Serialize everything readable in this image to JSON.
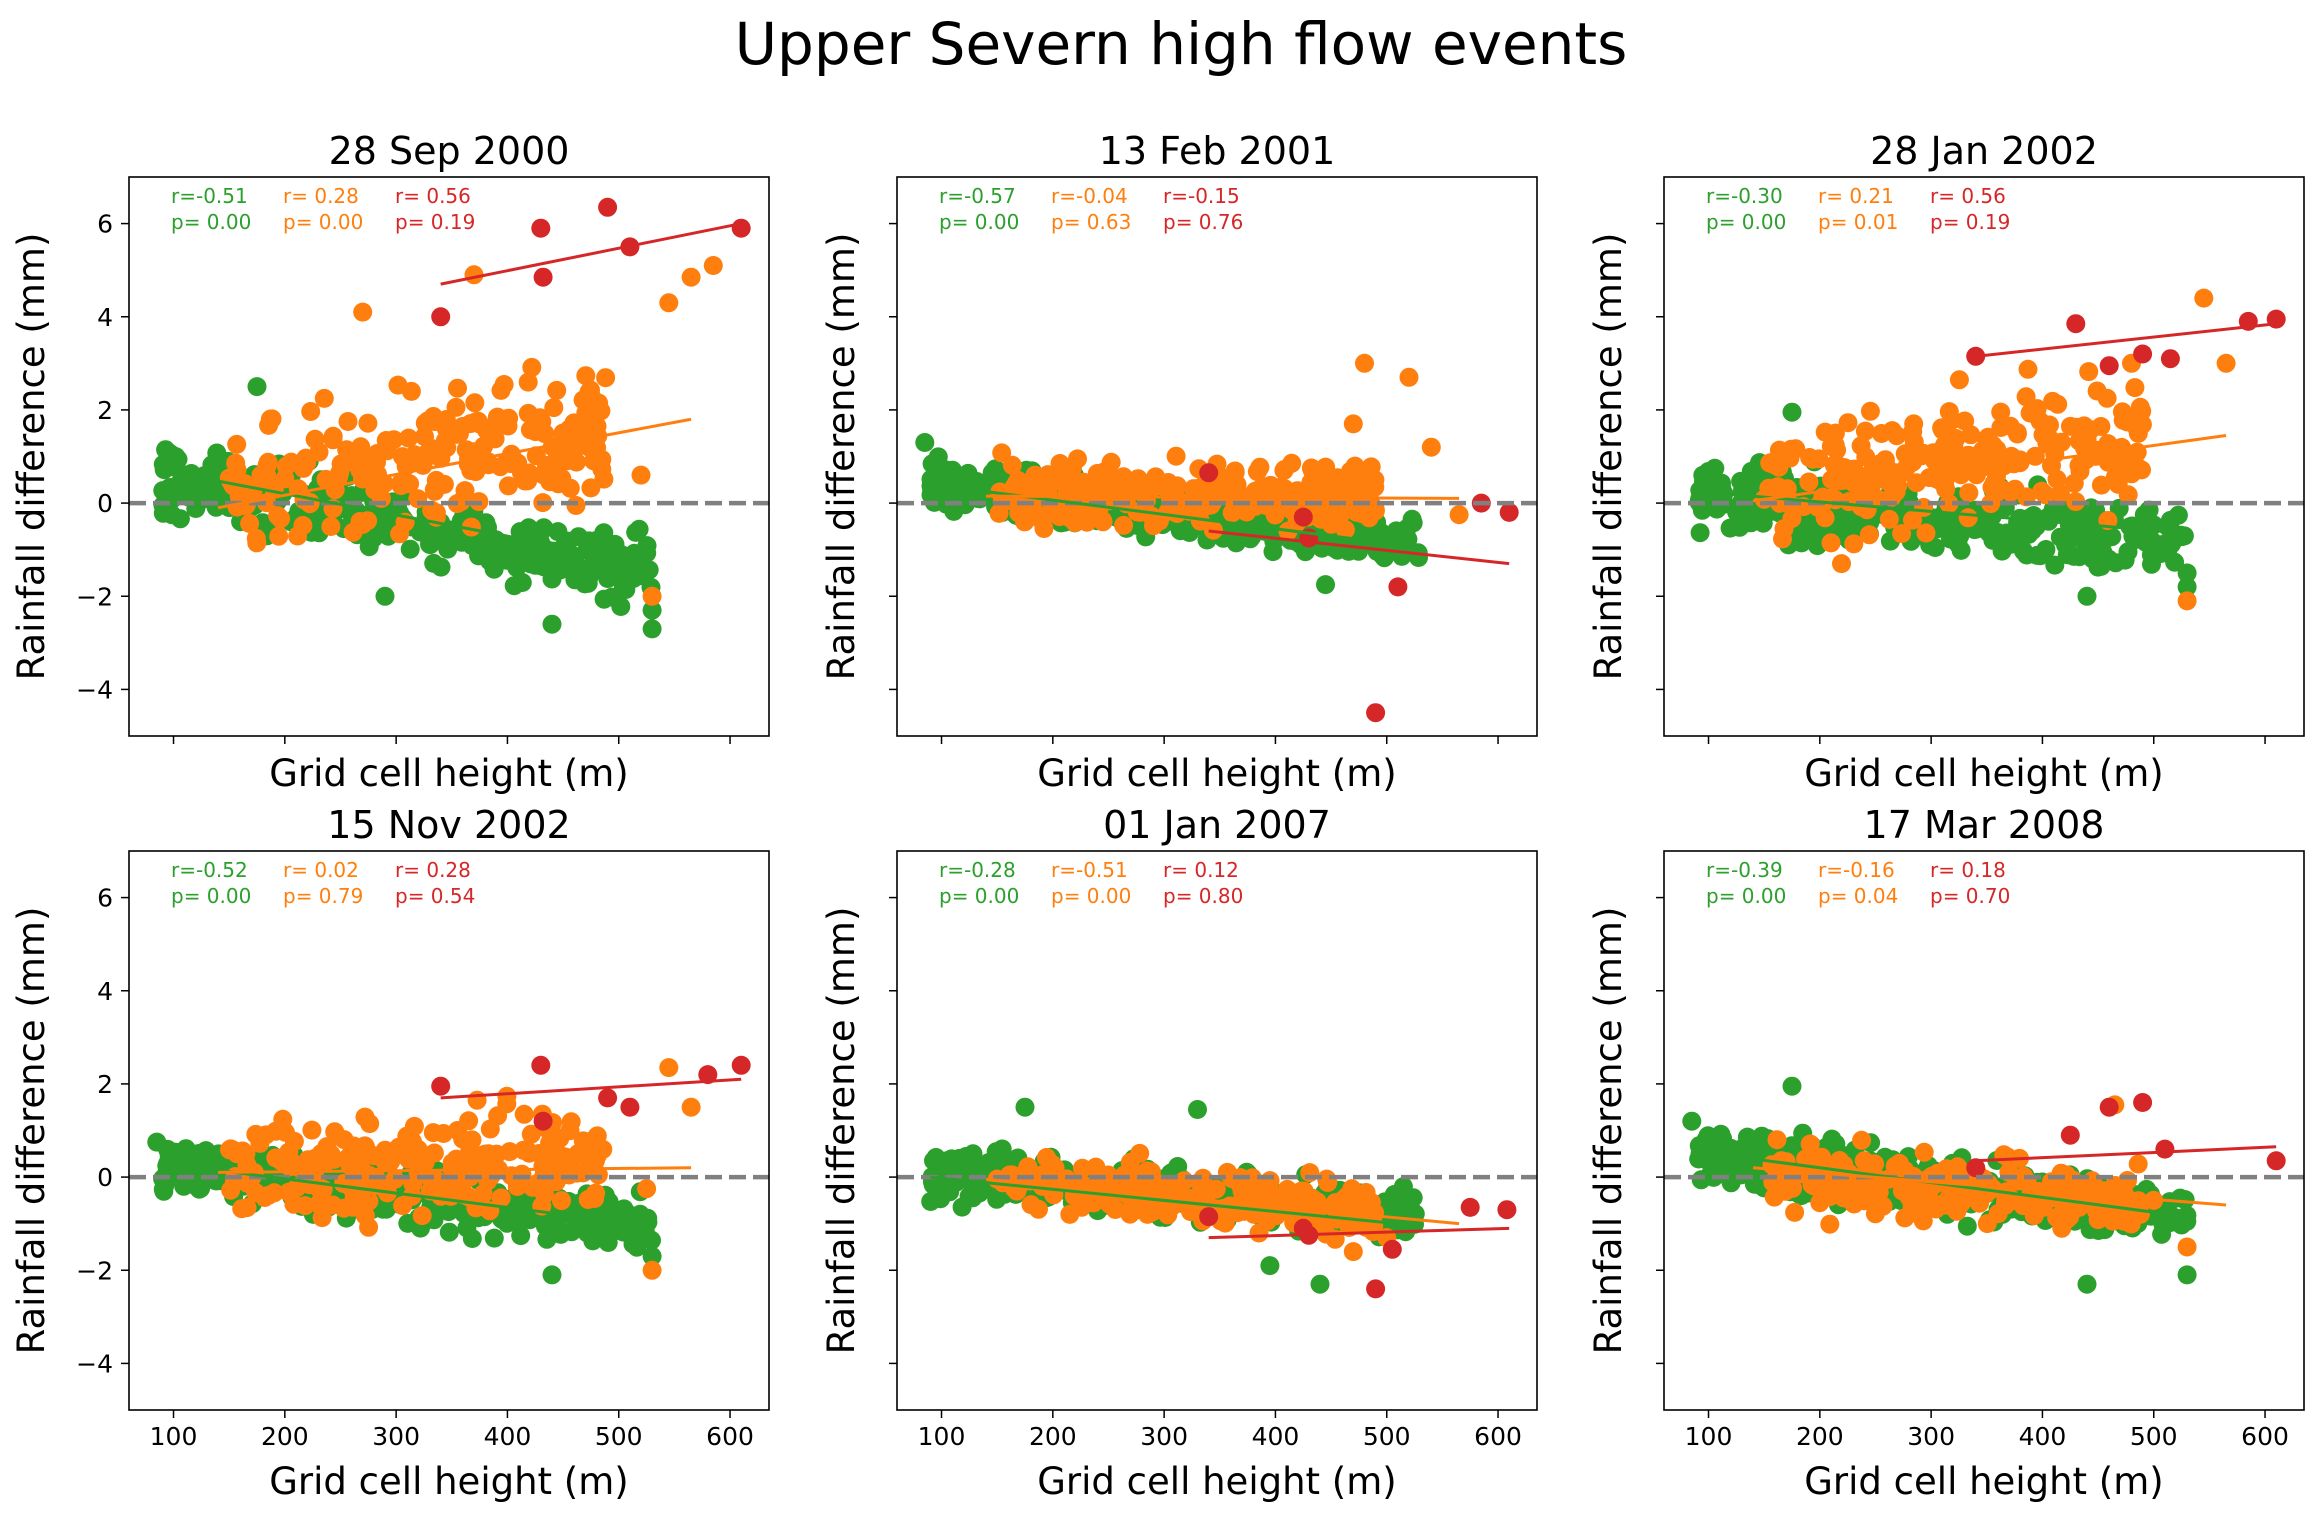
{
  "figure": {
    "title": "Upper Severn high flow events"
  },
  "colors": {
    "green": "#2ca02c",
    "orange": "#ff7f0e",
    "red": "#d62728",
    "zero_line": "#808080"
  },
  "chart_data": [
    {
      "type": "scatter",
      "title": "28 Sep 2000",
      "xlabel": "Grid cell height (m)",
      "ylabel": "Rainfall difference (mm)",
      "xlim": [
        60,
        635
      ],
      "ylim": [
        -5,
        7
      ],
      "xticks": [
        "100",
        "200",
        "300",
        "400",
        "500",
        "600"
      ],
      "yticks": [
        "-4",
        "-2",
        "0",
        "2",
        "4",
        "6"
      ],
      "show_xticklabels": false,
      "show_yticklabels": true,
      "show_xlabel": true,
      "show_ylabel": true,
      "stats": {
        "green": {
          "r": "r=-0.51",
          "p": "p= 0.00"
        },
        "orange": {
          "r": "r= 0.28",
          "p": "p= 0.00"
        },
        "red": {
          "r": "r= 0.56",
          "p": "p= 0.19"
        }
      },
      "fits": {
        "green": {
          "x": [
            90,
            530
          ],
          "y": [
            0.7,
            -1.3
          ]
        },
        "orange": {
          "x": [
            140,
            565
          ],
          "y": [
            -0.1,
            1.8
          ]
        },
        "red": {
          "x": [
            340,
            610
          ],
          "y": [
            4.7,
            6.0
          ]
        }
      },
      "red_points": [
        [
          340,
          4.0
        ],
        [
          430,
          5.9
        ],
        [
          432,
          4.85
        ],
        [
          490,
          6.35
        ],
        [
          510,
          5.5
        ],
        [
          610,
          5.9
        ]
      ],
      "orange_extra": [
        [
          270,
          4.1
        ],
        [
          370,
          4.9
        ],
        [
          545,
          4.3
        ],
        [
          565,
          4.85
        ],
        [
          585,
          5.1
        ],
        [
          530,
          -2.0
        ],
        [
          520,
          0.6
        ]
      ],
      "green_extra": [
        [
          175,
          2.5
        ],
        [
          530,
          -2.7
        ],
        [
          530,
          -2.3
        ],
        [
          440,
          -2.6
        ],
        [
          290,
          -2.0
        ]
      ],
      "green_trend": {
        "a": -0.0045,
        "b": 0.95,
        "spread": 0.65
      },
      "orange_trend": {
        "a": 0.004,
        "b": -0.45,
        "spread": 1.3
      }
    },
    {
      "type": "scatter",
      "title": "13 Feb 2001",
      "xlabel": "Grid cell height (m)",
      "ylabel": "Rainfall difference (mm)",
      "xlim": [
        60,
        635
      ],
      "ylim": [
        -5,
        7
      ],
      "xticks": [
        "100",
        "200",
        "300",
        "400",
        "500",
        "600"
      ],
      "yticks": [
        "-4",
        "-2",
        "0",
        "2",
        "4",
        "6"
      ],
      "show_xticklabels": false,
      "show_yticklabels": false,
      "show_xlabel": true,
      "show_ylabel": true,
      "stats": {
        "green": {
          "r": "r=-0.57",
          "p": "p= 0.00"
        },
        "orange": {
          "r": "r=-0.04",
          "p": "p= 0.63"
        },
        "red": {
          "r": "r=-0.15",
          "p": "p= 0.76"
        }
      },
      "fits": {
        "green": {
          "x": [
            90,
            530
          ],
          "y": [
            0.4,
            -0.95
          ]
        },
        "orange": {
          "x": [
            140,
            565
          ],
          "y": [
            0.15,
            0.1
          ]
        },
        "red": {
          "x": [
            340,
            610
          ],
          "y": [
            -0.6,
            -1.3
          ]
        }
      },
      "red_points": [
        [
          340,
          0.65
        ],
        [
          425,
          -0.3
        ],
        [
          430,
          -0.75
        ],
        [
          490,
          -4.5
        ],
        [
          510,
          -1.8
        ],
        [
          585,
          0.0
        ],
        [
          610,
          -0.2
        ]
      ],
      "orange_extra": [
        [
          480,
          3.0
        ],
        [
          520,
          2.7
        ],
        [
          540,
          1.2
        ],
        [
          565,
          -0.25
        ],
        [
          470,
          1.7
        ]
      ],
      "green_extra": [
        [
          85,
          1.3
        ],
        [
          445,
          -1.75
        ]
      ],
      "green_trend": {
        "a": -0.0028,
        "b": 0.65,
        "spread": 0.45
      },
      "orange_trend": {
        "a": 0.0,
        "b": 0.2,
        "spread": 0.7
      }
    },
    {
      "type": "scatter",
      "title": "28 Jan 2002",
      "xlabel": "Grid cell height (m)",
      "ylabel": "Rainfall difference (mm)",
      "xlim": [
        60,
        635
      ],
      "ylim": [
        -5,
        7
      ],
      "xticks": [
        "100",
        "200",
        "300",
        "400",
        "500",
        "600"
      ],
      "yticks": [
        "-4",
        "-2",
        "0",
        "2",
        "4",
        "6"
      ],
      "show_xticklabels": false,
      "show_yticklabels": false,
      "show_xlabel": true,
      "show_ylabel": true,
      "stats": {
        "green": {
          "r": "r=-0.30",
          "p": "p= 0.00"
        },
        "orange": {
          "r": "r= 0.21",
          "p": "p= 0.01"
        },
        "red": {
          "r": "r= 0.56",
          "p": "p= 0.19"
        }
      },
      "fits": {
        "green": {
          "x": [
            90,
            530
          ],
          "y": [
            0.25,
            -0.65
          ]
        },
        "orange": {
          "x": [
            140,
            565
          ],
          "y": [
            0.05,
            1.45
          ]
        },
        "red": {
          "x": [
            340,
            610
          ],
          "y": [
            3.15,
            3.85
          ]
        }
      },
      "red_points": [
        [
          340,
          3.15
        ],
        [
          430,
          3.85
        ],
        [
          460,
          2.95
        ],
        [
          490,
          3.2
        ],
        [
          515,
          3.1
        ],
        [
          585,
          3.9
        ],
        [
          610,
          3.95
        ]
      ],
      "orange_extra": [
        [
          545,
          4.4
        ],
        [
          565,
          3.0
        ],
        [
          530,
          -2.1
        ],
        [
          480,
          3.0
        ]
      ],
      "green_extra": [
        [
          175,
          1.95
        ],
        [
          530,
          -1.5
        ],
        [
          530,
          -1.8
        ],
        [
          440,
          -2.0
        ]
      ],
      "green_trend": {
        "a": -0.0022,
        "b": 0.35,
        "spread": 0.6
      },
      "orange_trend": {
        "a": 0.0035,
        "b": -0.35,
        "spread": 1.2
      }
    },
    {
      "type": "scatter",
      "title": "15 Nov 2002",
      "xlabel": "Grid cell height (m)",
      "ylabel": "Rainfall difference (mm)",
      "xlim": [
        60,
        635
      ],
      "ylim": [
        -5,
        7
      ],
      "xticks": [
        "100",
        "200",
        "300",
        "400",
        "500",
        "600"
      ],
      "yticks": [
        "-4",
        "-2",
        "0",
        "2",
        "4",
        "6"
      ],
      "show_xticklabels": true,
      "show_yticklabels": true,
      "show_xlabel": true,
      "show_ylabel": true,
      "stats": {
        "green": {
          "r": "r=-0.52",
          "p": "p= 0.00"
        },
        "orange": {
          "r": "r= 0.02",
          "p": "p= 0.79"
        },
        "red": {
          "r": "r= 0.28",
          "p": "p= 0.54"
        }
      },
      "fits": {
        "green": {
          "x": [
            90,
            530
          ],
          "y": [
            0.3,
            -1.05
          ]
        },
        "orange": {
          "x": [
            140,
            565
          ],
          "y": [
            0.1,
            0.2
          ]
        },
        "red": {
          "x": [
            340,
            610
          ],
          "y": [
            1.7,
            2.1
          ]
        }
      },
      "red_points": [
        [
          340,
          1.95
        ],
        [
          430,
          2.4
        ],
        [
          432,
          1.2
        ],
        [
          490,
          1.7
        ],
        [
          510,
          1.5
        ],
        [
          580,
          2.2
        ],
        [
          610,
          2.4
        ]
      ],
      "orange_extra": [
        [
          545,
          2.35
        ],
        [
          565,
          1.5
        ],
        [
          530,
          -2.0
        ],
        [
          525,
          -0.25
        ]
      ],
      "green_extra": [
        [
          85,
          0.75
        ],
        [
          530,
          -1.7
        ],
        [
          440,
          -2.1
        ]
      ],
      "green_trend": {
        "a": -0.003,
        "b": 0.55,
        "spread": 0.55
      },
      "orange_trend": {
        "a": 0.0008,
        "b": 0.0,
        "spread": 0.9
      }
    },
    {
      "type": "scatter",
      "title": "01 Jan 2007",
      "xlabel": "Grid cell height (m)",
      "ylabel": "Rainfall difference (mm)",
      "xlim": [
        60,
        635
      ],
      "ylim": [
        -5,
        7
      ],
      "xticks": [
        "100",
        "200",
        "300",
        "400",
        "500",
        "600"
      ],
      "yticks": [
        "-4",
        "-2",
        "0",
        "2",
        "4",
        "6"
      ],
      "show_xticklabels": true,
      "show_yticklabels": false,
      "show_xlabel": true,
      "show_ylabel": true,
      "stats": {
        "green": {
          "r": "r=-0.28",
          "p": "p= 0.00"
        },
        "orange": {
          "r": "r=-0.51",
          "p": "p= 0.00"
        },
        "red": {
          "r": "r= 0.12",
          "p": "p= 0.80"
        }
      },
      "fits": {
        "green": {
          "x": [
            90,
            530
          ],
          "y": [
            0.0,
            -1.05
          ]
        },
        "orange": {
          "x": [
            140,
            565
          ],
          "y": [
            -0.05,
            -1.0
          ]
        },
        "red": {
          "x": [
            340,
            610
          ],
          "y": [
            -1.3,
            -1.1
          ]
        }
      },
      "red_points": [
        [
          340,
          -0.85
        ],
        [
          425,
          -1.1
        ],
        [
          430,
          -1.25
        ],
        [
          490,
          -2.4
        ],
        [
          505,
          -1.55
        ],
        [
          575,
          -0.65
        ],
        [
          608,
          -0.7
        ]
      ],
      "orange_extra": [
        [
          470,
          -1.6
        ],
        [
          500,
          -1.3
        ]
      ],
      "green_extra": [
        [
          175,
          1.5
        ],
        [
          330,
          1.45
        ],
        [
          395,
          -1.9
        ],
        [
          440,
          -2.3
        ]
      ],
      "green_trend": {
        "a": -0.0018,
        "b": 0.2,
        "spread": 0.5
      },
      "orange_trend": {
        "a": -0.0022,
        "b": 0.3,
        "spread": 0.5
      }
    },
    {
      "type": "scatter",
      "title": "17 Mar 2008",
      "xlabel": "Grid cell height (m)",
      "ylabel": "Rainfall difference (mm)",
      "xlim": [
        60,
        635
      ],
      "ylim": [
        -5,
        7
      ],
      "xticks": [
        "100",
        "200",
        "300",
        "400",
        "500",
        "600"
      ],
      "yticks": [
        "-4",
        "-2",
        "0",
        "2",
        "4",
        "6"
      ],
      "show_xticklabels": true,
      "show_yticklabels": false,
      "show_xlabel": true,
      "show_ylabel": true,
      "stats": {
        "green": {
          "r": "r=-0.39",
          "p": "p= 0.00"
        },
        "orange": {
          "r": "r=-0.16",
          "p": "p= 0.04"
        },
        "red": {
          "r": "r= 0.18",
          "p": "p= 0.70"
        }
      },
      "fits": {
        "green": {
          "x": [
            90,
            530
          ],
          "y": [
            0.55,
            -0.85
          ]
        },
        "orange": {
          "x": [
            140,
            565
          ],
          "y": [
            0.2,
            -0.6
          ]
        },
        "red": {
          "x": [
            340,
            610
          ],
          "y": [
            0.35,
            0.65
          ]
        }
      },
      "red_points": [
        [
          340,
          0.2
        ],
        [
          425,
          0.9
        ],
        [
          460,
          1.5
        ],
        [
          490,
          1.6
        ],
        [
          510,
          0.6
        ],
        [
          610,
          0.35
        ]
      ],
      "orange_extra": [
        [
          465,
          1.55
        ],
        [
          530,
          -1.5
        ],
        [
          500,
          -0.5
        ]
      ],
      "green_extra": [
        [
          85,
          1.2
        ],
        [
          175,
          1.95
        ],
        [
          530,
          -2.1
        ],
        [
          440,
          -2.3
        ]
      ],
      "green_trend": {
        "a": -0.003,
        "b": 0.75,
        "spread": 0.55
      },
      "orange_trend": {
        "a": -0.0018,
        "b": 0.35,
        "spread": 0.65
      }
    }
  ]
}
